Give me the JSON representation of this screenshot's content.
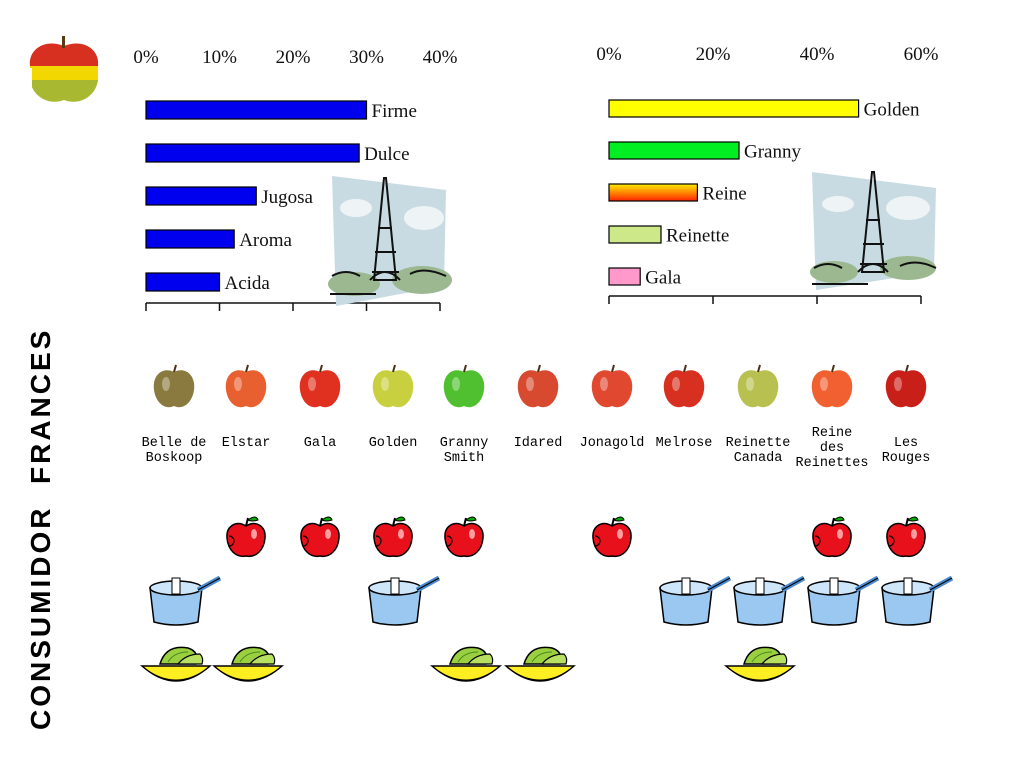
{
  "title": "CONSUMIDOR  FRANCES",
  "colors": {
    "blue": "#0000ee",
    "yellow": "#ffff00",
    "green": "#00ee22",
    "reine_top": "#ffee00",
    "reine_bottom": "#ff2200",
    "reinette": "#cce888",
    "gala": "#ff99cc"
  },
  "chart_data": [
    {
      "type": "bar",
      "orientation": "horizontal",
      "categories": [
        "Firme",
        "Dulce",
        "Jugosa",
        "Aroma",
        "Acida"
      ],
      "values": [
        30,
        29,
        15,
        12,
        10
      ],
      "ticks": [
        "0%",
        "10%",
        "20%",
        "30%",
        "40%"
      ],
      "xlim": [
        0,
        40
      ],
      "unit": "%",
      "color": "#0000ee"
    },
    {
      "type": "bar",
      "orientation": "horizontal",
      "categories": [
        "Golden",
        "Granny",
        "Reine",
        "Reinette",
        "Gala"
      ],
      "values": [
        48,
        25,
        17,
        10,
        6
      ],
      "ticks": [
        "0%",
        "20%",
        "40%",
        "60%"
      ],
      "xlim": [
        0,
        60
      ],
      "unit": "%",
      "colors": [
        "#ffff00",
        "#00ee22",
        "gradient-orange-red",
        "#cce888",
        "#ff99cc"
      ]
    }
  ],
  "varieties": [
    {
      "name": "Belle de\nBoskoop",
      "color": "#8a7a40",
      "uses": {
        "fresh": false,
        "cooking": true,
        "salad": true
      }
    },
    {
      "name": "Elstar",
      "color": "#e86030",
      "uses": {
        "fresh": true,
        "cooking": false,
        "salad": true
      }
    },
    {
      "name": "Gala",
      "color": "#e03020",
      "uses": {
        "fresh": true,
        "cooking": false,
        "salad": false
      }
    },
    {
      "name": "Golden",
      "color": "#c8d040",
      "uses": {
        "fresh": true,
        "cooking": true,
        "salad": false
      }
    },
    {
      "name": "Granny\nSmith",
      "color": "#50c030",
      "uses": {
        "fresh": true,
        "cooking": false,
        "salad": true
      }
    },
    {
      "name": "Idared",
      "color": "#d84a30",
      "uses": {
        "fresh": false,
        "cooking": false,
        "salad": true
      }
    },
    {
      "name": "Jonagold",
      "color": "#e04830",
      "uses": {
        "fresh": true,
        "cooking": false,
        "salad": false
      }
    },
    {
      "name": "Melrose",
      "color": "#d83020",
      "uses": {
        "fresh": false,
        "cooking": true,
        "salad": false
      }
    },
    {
      "name": "Reinette\nCanada",
      "color": "#b8c050",
      "uses": {
        "fresh": false,
        "cooking": true,
        "salad": true
      }
    },
    {
      "name": "Reine\ndes\nReinettes",
      "color": "#f06030",
      "uses": {
        "fresh": true,
        "cooking": true,
        "salad": false
      }
    },
    {
      "name": "Les\nRouges",
      "color": "#c82018",
      "uses": {
        "fresh": true,
        "cooking": true,
        "salad": false
      }
    }
  ]
}
